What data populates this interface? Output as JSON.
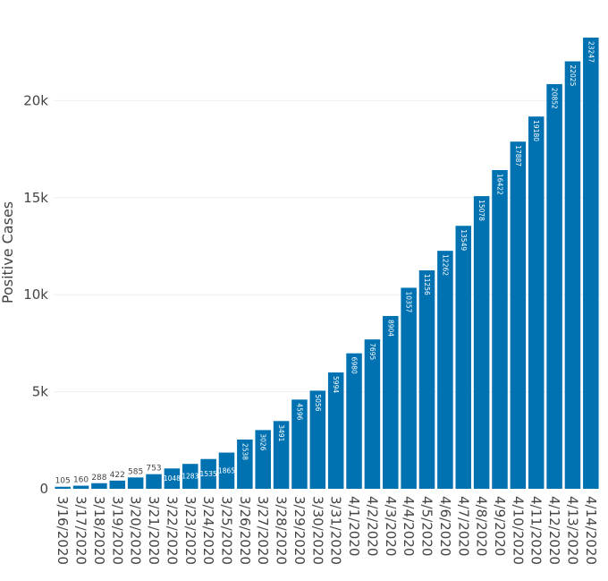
{
  "chart_data": {
    "type": "bar",
    "title": "",
    "xlabel": "",
    "ylabel": "Positive Cases",
    "ylim": [
      0,
      23247
    ],
    "yticks": [
      0,
      5000,
      10000,
      15000,
      20000
    ],
    "ytick_labels": [
      "0",
      "5k",
      "10k",
      "15k",
      "20k"
    ],
    "grid": true,
    "legend": "none",
    "bar_color": "#0072b2",
    "categories": [
      "3/16/2020",
      "3/17/2020",
      "3/18/2020",
      "3/19/2020",
      "3/20/2020",
      "3/21/2020",
      "3/22/2020",
      "3/23/2020",
      "3/24/2020",
      "3/25/2020",
      "3/26/2020",
      "3/27/2020",
      "3/28/2020",
      "3/29/2020",
      "3/30/2020",
      "3/31/2020",
      "4/1/2020",
      "4/2/2020",
      "4/3/2020",
      "4/4/2020",
      "4/5/2020",
      "4/6/2020",
      "4/7/2020",
      "4/8/2020",
      "4/9/2020",
      "4/10/2020",
      "4/11/2020",
      "4/12/2020",
      "4/13/2020",
      "4/14/2020"
    ],
    "values": [
      105,
      160,
      288,
      422,
      585,
      753,
      1048,
      1283,
      1535,
      1865,
      2538,
      3026,
      3491,
      4596,
      5056,
      5994,
      6980,
      7695,
      8904,
      10357,
      11256,
      12262,
      13549,
      15078,
      16422,
      17887,
      19180,
      20852,
      22025,
      23247
    ],
    "data_labels": [
      "105",
      "160",
      "288",
      "422",
      "585",
      "753",
      "1048",
      "1283",
      "1535",
      "1865",
      "2538",
      "3026",
      "3491",
      "4596",
      "5056",
      "5994",
      "6980",
      "7695",
      "8904",
      "10357",
      "11256",
      "12262",
      "13549",
      "15078",
      "16422",
      "17887",
      "19180",
      "20852",
      "22025",
      "23247"
    ]
  }
}
